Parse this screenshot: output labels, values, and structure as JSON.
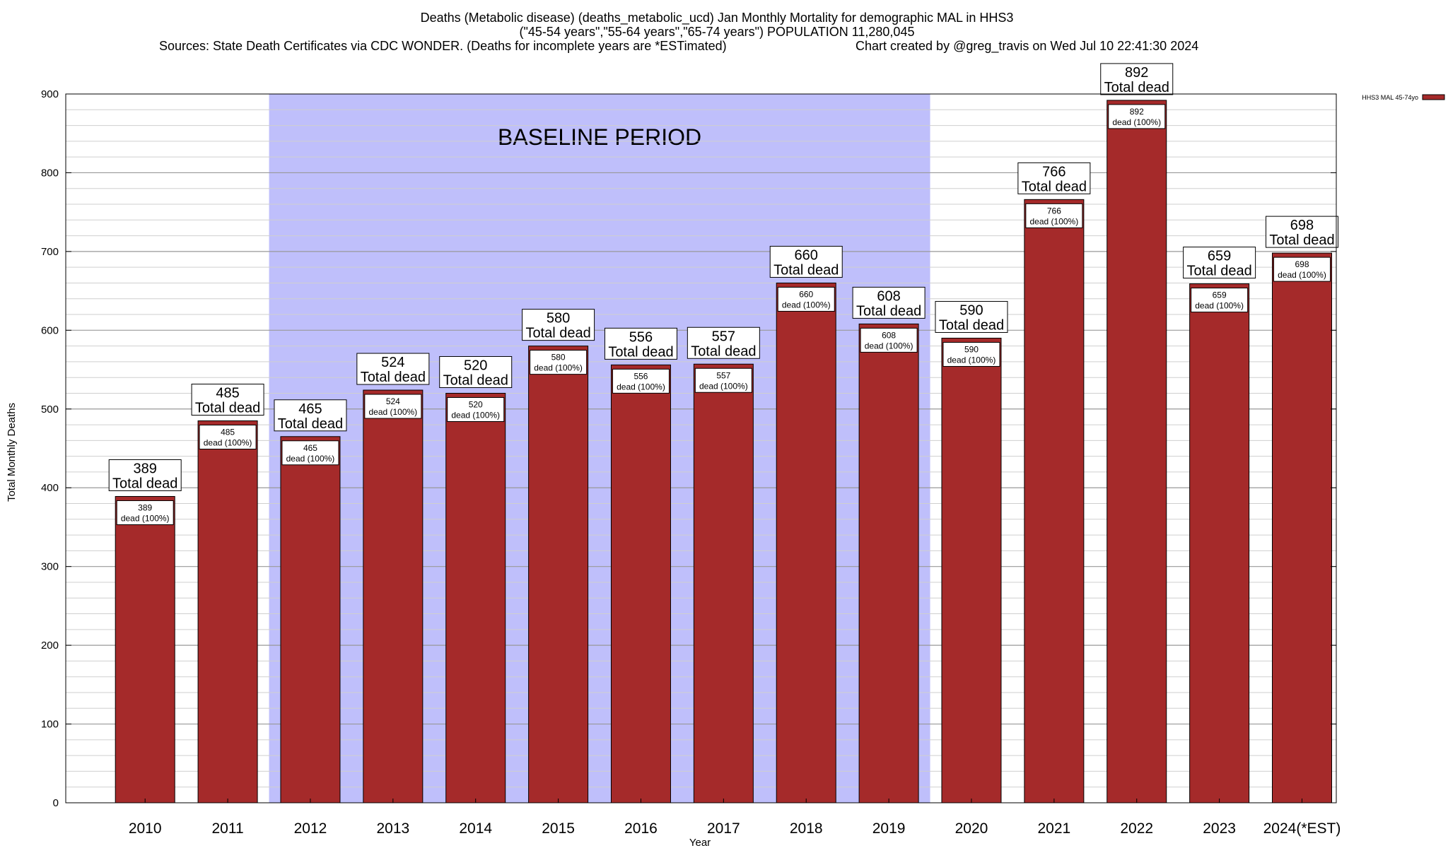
{
  "chart_data": {
    "type": "bar",
    "title": "Deaths (Metabolic disease) (deaths_metabolic_ucd) Jan Monthly Mortality for demographic MAL in HHS3",
    "subtitle": "(\"45-54 years\",\"55-64 years\",\"65-74 years\") POPULATION 11,280,045",
    "sources": "Sources: State Death Certificates via CDC WONDER. (Deaths for incomplete years are *ESTimated)",
    "credit": "Chart created by @greg_travis on Wed Jul 10 22:41:30 2024",
    "xlabel": "Year",
    "ylabel": "Total Monthly Deaths",
    "ylim": [
      0,
      900
    ],
    "yticks": [
      "0",
      "100",
      "200",
      "300",
      "400",
      "500",
      "600",
      "700",
      "800",
      "900"
    ],
    "y_minor_step": 20,
    "grid": true,
    "legend_position": "top-right",
    "categories": [
      "2010",
      "2011",
      "2012",
      "2013",
      "2014",
      "2015",
      "2016",
      "2017",
      "2018",
      "2019",
      "2020",
      "2021",
      "2022",
      "2023",
      "2024(*EST)"
    ],
    "series": [
      {
        "name": "HHS3 MAL 45-74yo",
        "color": "#a52a2a",
        "values": [
          389,
          485,
          465,
          524,
          520,
          580,
          556,
          557,
          660,
          608,
          590,
          766,
          892,
          659,
          698
        ]
      }
    ],
    "total_labels": {
      "numbers": [
        "389",
        "485",
        "465",
        "524",
        "520",
        "580",
        "556",
        "557",
        "660",
        "608",
        "590",
        "766",
        "892",
        "659",
        "698"
      ],
      "text": "Total dead"
    },
    "segment_labels": {
      "numbers": [
        "389",
        "485",
        "465",
        "524",
        "520",
        "580",
        "556",
        "557",
        "660",
        "608",
        "590",
        "766",
        "892",
        "659",
        "698"
      ],
      "text": "dead (100%)"
    },
    "baseline_period": {
      "label": "BASELINE PERIOD",
      "from_category": "2012",
      "to_category": "2019",
      "color": "#bfbffb"
    }
  }
}
